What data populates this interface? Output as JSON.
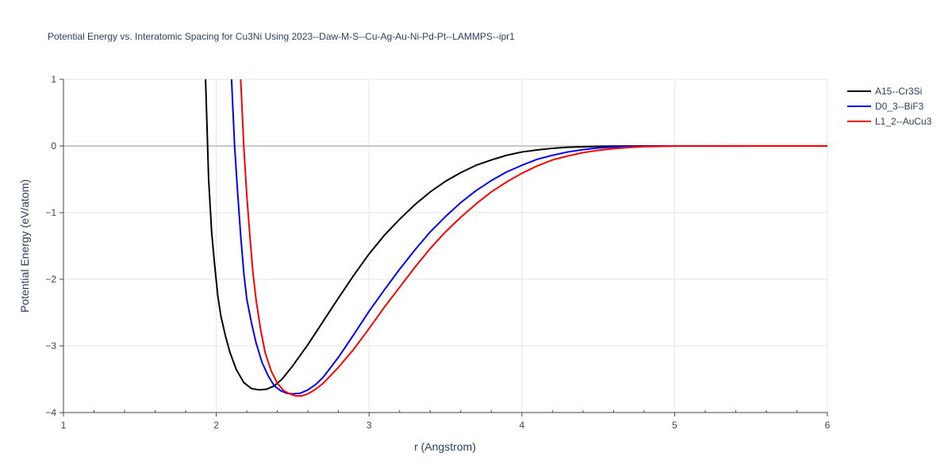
{
  "chart_data": {
    "type": "line",
    "title": "Potential Energy vs. Interatomic Spacing for Cu3Ni Using 2023--Daw-M-S--Cu-Ag-Au-Ni-Pd-Pt--LAMMPS--ipr1",
    "xlabel": "r (Angstrom)",
    "ylabel": "Potential Energy (eV/atom)",
    "xlim": [
      1,
      6
    ],
    "ylim": [
      -4,
      1
    ],
    "x_ticks": [
      1,
      2,
      3,
      4,
      5,
      6
    ],
    "x_tick_labels": [
      "1",
      "2",
      "3",
      "4",
      "5",
      "6"
    ],
    "y_ticks": [
      1,
      0,
      -1,
      -2,
      -3,
      -4
    ],
    "y_tick_labels": [
      "1",
      "0",
      "−1",
      "−2",
      "−3",
      "−4"
    ],
    "grid": true,
    "legend_position": "top-right",
    "series": [
      {
        "name": "A15--Cr3Si",
        "color": "#000000",
        "x": [
          1.93,
          1.95,
          1.97,
          1.99,
          2.01,
          2.03,
          2.06,
          2.09,
          2.13,
          2.18,
          2.23,
          2.28,
          2.33,
          2.38,
          2.43,
          2.5,
          2.6,
          2.7,
          2.8,
          2.9,
          3.0,
          3.1,
          3.2,
          3.3,
          3.4,
          3.5,
          3.6,
          3.7,
          3.8,
          3.9,
          4.0,
          4.1,
          4.2,
          4.3,
          4.4,
          4.5,
          4.6,
          4.7,
          4.8,
          5.0,
          5.5,
          6.0
        ],
        "y": [
          1.0,
          -0.5,
          -1.3,
          -1.8,
          -2.25,
          -2.55,
          -2.85,
          -3.1,
          -3.35,
          -3.55,
          -3.64,
          -3.66,
          -3.65,
          -3.6,
          -3.5,
          -3.3,
          -2.98,
          -2.63,
          -2.28,
          -1.94,
          -1.62,
          -1.34,
          -1.1,
          -0.88,
          -0.69,
          -0.53,
          -0.4,
          -0.29,
          -0.21,
          -0.14,
          -0.09,
          -0.06,
          -0.035,
          -0.02,
          -0.012,
          -0.006,
          -0.003,
          -0.001,
          0.0,
          0.0,
          0.0,
          0.0
        ]
      },
      {
        "name": "D0_3--BiF3",
        "color": "#0000ff",
        "x": [
          2.1,
          2.12,
          2.14,
          2.16,
          2.18,
          2.2,
          2.23,
          2.26,
          2.3,
          2.34,
          2.38,
          2.42,
          2.46,
          2.5,
          2.55,
          2.6,
          2.65,
          2.7,
          2.8,
          2.9,
          3.0,
          3.1,
          3.2,
          3.3,
          3.4,
          3.5,
          3.6,
          3.7,
          3.8,
          3.9,
          4.0,
          4.1,
          4.2,
          4.3,
          4.4,
          4.5,
          4.6,
          4.7,
          4.8,
          4.9,
          5.0,
          5.5,
          6.0
        ],
        "y": [
          1.0,
          0.0,
          -0.7,
          -1.35,
          -1.9,
          -2.3,
          -2.65,
          -2.95,
          -3.25,
          -3.45,
          -3.6,
          -3.67,
          -3.71,
          -3.72,
          -3.71,
          -3.66,
          -3.58,
          -3.47,
          -3.17,
          -2.83,
          -2.48,
          -2.16,
          -1.85,
          -1.56,
          -1.29,
          -1.06,
          -0.85,
          -0.67,
          -0.52,
          -0.39,
          -0.29,
          -0.2,
          -0.14,
          -0.09,
          -0.055,
          -0.03,
          -0.016,
          -0.008,
          -0.003,
          -0.001,
          0.0,
          0.0,
          0.0
        ]
      },
      {
        "name": "L1_2--AuCu3",
        "color": "#ff0000",
        "x": [
          2.16,
          2.18,
          2.2,
          2.22,
          2.24,
          2.26,
          2.29,
          2.32,
          2.36,
          2.4,
          2.44,
          2.48,
          2.52,
          2.56,
          2.6,
          2.65,
          2.7,
          2.8,
          2.9,
          3.0,
          3.1,
          3.2,
          3.3,
          3.4,
          3.5,
          3.6,
          3.7,
          3.8,
          3.9,
          4.0,
          4.1,
          4.2,
          4.3,
          4.4,
          4.5,
          4.6,
          4.7,
          4.8,
          4.9,
          5.0,
          5.5,
          6.0
        ],
        "y": [
          1.0,
          0.0,
          -0.75,
          -1.35,
          -1.9,
          -2.3,
          -2.75,
          -3.1,
          -3.38,
          -3.56,
          -3.67,
          -3.72,
          -3.75,
          -3.75,
          -3.72,
          -3.65,
          -3.56,
          -3.32,
          -3.05,
          -2.74,
          -2.42,
          -2.12,
          -1.82,
          -1.54,
          -1.29,
          -1.07,
          -0.87,
          -0.69,
          -0.54,
          -0.41,
          -0.3,
          -0.21,
          -0.15,
          -0.1,
          -0.065,
          -0.04,
          -0.022,
          -0.011,
          -0.005,
          -0.002,
          0.0,
          0.0
        ]
      }
    ]
  }
}
